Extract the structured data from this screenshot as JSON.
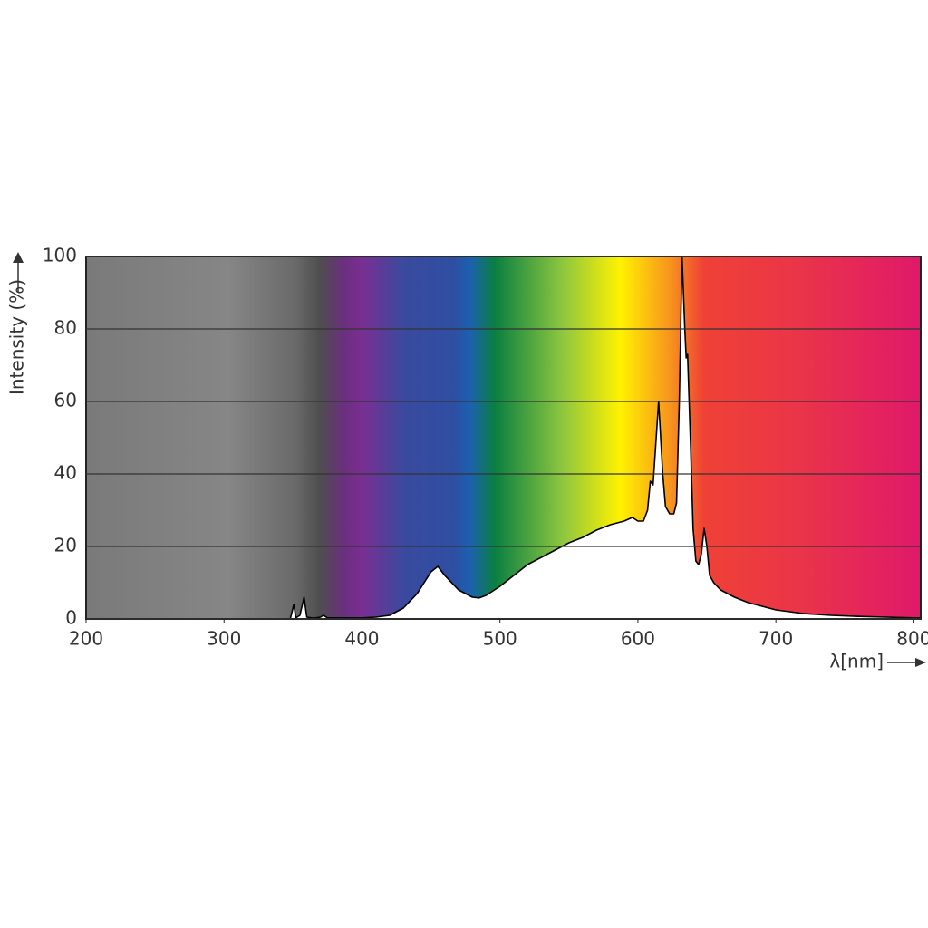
{
  "chart_data": {
    "type": "line",
    "y_label": "Intensity (%)",
    "x_label": "λ[nm]",
    "x": [
      200,
      300,
      345,
      348,
      350.6,
      352,
      355,
      358,
      360,
      365,
      370,
      372,
      375,
      380,
      390,
      400,
      410,
      420,
      430,
      440,
      450,
      455,
      460,
      470,
      480,
      485,
      490,
      500,
      510,
      520,
      530,
      540,
      550,
      560,
      570,
      580,
      590,
      596,
      600,
      604,
      607,
      609,
      611,
      615,
      618,
      620,
      623,
      626,
      628,
      630,
      632,
      634,
      635,
      636,
      638,
      640,
      642,
      644,
      646,
      648,
      650,
      652,
      655,
      660,
      670,
      680,
      690,
      700,
      720,
      740,
      760,
      780,
      800,
      805
    ],
    "values": [
      0,
      0,
      0,
      0,
      4,
      0.3,
      1,
      6,
      0.5,
      0.2,
      0.5,
      1,
      0.3,
      0.3,
      0.3,
      0.3,
      0.5,
      1,
      3,
      7,
      13,
      14.5,
      12,
      8,
      6,
      5.8,
      6.5,
      9,
      12,
      15,
      17,
      19,
      21,
      22.5,
      24.5,
      26,
      27,
      28,
      27,
      27,
      30,
      38,
      37,
      60,
      40,
      31,
      29,
      29,
      32,
      60,
      100,
      80,
      72,
      73,
      50,
      25,
      16,
      15,
      18,
      25,
      20,
      12,
      10,
      8,
      6,
      4.5,
      3.5,
      2.5,
      1.5,
      1,
      0.7,
      0.5,
      0.3,
      0.3
    ],
    "color": "#000000",
    "fill": "#ffffff",
    "xlim": [
      200,
      805
    ],
    "xticks": [
      200,
      300,
      400,
      500,
      600,
      700,
      800
    ],
    "ylim": [
      0,
      100
    ],
    "yticks": [
      0,
      20,
      40,
      60,
      80,
      100
    ],
    "grid": true
  }
}
